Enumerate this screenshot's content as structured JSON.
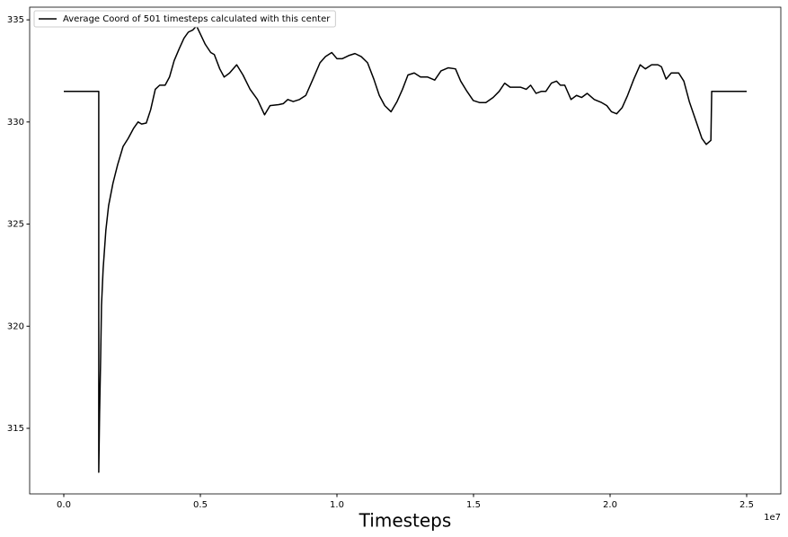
{
  "chart_data": {
    "type": "line",
    "xlabel": "Timesteps",
    "x_offset_label": "1e7",
    "x": [
      0,
      0.128,
      0.128,
      0.131,
      0.135,
      0.138,
      0.144,
      0.154,
      0.164,
      0.18,
      0.197,
      0.217,
      0.236,
      0.256,
      0.272,
      0.285,
      0.302,
      0.318,
      0.335,
      0.351,
      0.371,
      0.387,
      0.404,
      0.423,
      0.44,
      0.456,
      0.472,
      0.486,
      0.518,
      0.538,
      0.551,
      0.571,
      0.587,
      0.607,
      0.633,
      0.656,
      0.682,
      0.709,
      0.735,
      0.755,
      0.787,
      0.804,
      0.82,
      0.84,
      0.863,
      0.886,
      0.909,
      0.938,
      0.958,
      0.981,
      1.0,
      1.02,
      1.043,
      1.066,
      1.089,
      1.112,
      1.135,
      1.155,
      1.175,
      1.198,
      1.22,
      1.24,
      1.26,
      1.283,
      1.306,
      1.332,
      1.358,
      1.381,
      1.407,
      1.434,
      1.453,
      1.476,
      1.499,
      1.522,
      1.545,
      1.572,
      1.594,
      1.614,
      1.634,
      1.654,
      1.673,
      1.693,
      1.709,
      1.729,
      1.749,
      1.765,
      1.785,
      1.804,
      1.818,
      1.834,
      1.857,
      1.877,
      1.896,
      1.916,
      1.942,
      1.969,
      1.988,
      2.005,
      2.024,
      2.044,
      2.064,
      2.087,
      2.11,
      2.129,
      2.152,
      2.175,
      2.188,
      2.205,
      2.224,
      2.251,
      2.27,
      2.29,
      2.313,
      2.336,
      2.352,
      2.369,
      2.372,
      2.5
    ],
    "series": [
      {
        "name": "Average Coord of 501 timesteps calculated with this center",
        "color": "#000000",
        "values": [
          331.5,
          331.5,
          312.85,
          315.7,
          318.5,
          321,
          322.8,
          324.7,
          325.9,
          327,
          327.9,
          328.8,
          329.2,
          329.7,
          330,
          329.9,
          329.95,
          330.6,
          331.6,
          331.8,
          331.8,
          332.2,
          333,
          333.6,
          334.1,
          334.4,
          334.5,
          334.7,
          333.8,
          333.4,
          333.3,
          332.6,
          332.2,
          332.4,
          332.8,
          332.3,
          331.6,
          331.1,
          330.35,
          330.8,
          330.85,
          330.9,
          331.1,
          331,
          331.1,
          331.3,
          332,
          332.9,
          333.2,
          333.4,
          333.1,
          333.1,
          333.25,
          333.35,
          333.2,
          332.9,
          332.1,
          331.3,
          330.8,
          330.5,
          331,
          331.6,
          332.3,
          332.4,
          332.2,
          332.2,
          332.05,
          332.5,
          332.65,
          332.6,
          332,
          331.5,
          331.05,
          330.95,
          330.95,
          331.2,
          331.5,
          331.9,
          331.7,
          331.7,
          331.7,
          331.6,
          331.8,
          331.4,
          331.5,
          331.5,
          331.9,
          332,
          331.8,
          331.8,
          331.1,
          331.3,
          331.2,
          331.4,
          331.1,
          330.95,
          330.8,
          330.5,
          330.4,
          330.7,
          331.3,
          332.1,
          332.8,
          332.6,
          332.8,
          332.8,
          332.7,
          332.1,
          332.4,
          332.4,
          332,
          331,
          330.1,
          329.2,
          328.9,
          329.1,
          331.5,
          331.5
        ]
      }
    ],
    "xlim": [
      -0.125,
      2.625
    ],
    "xticks": [
      {
        "value": 0,
        "label": "0.0"
      },
      0.5,
      {
        "value": 1,
        "label": "1.0"
      },
      1.5,
      {
        "value": 2,
        "label": "2.0"
      },
      2.5
    ],
    "ylim": [
      311.79,
      335.62
    ],
    "yticks": [
      315,
      320,
      325,
      330,
      335
    ],
    "grid": false,
    "legend": "upper left"
  }
}
